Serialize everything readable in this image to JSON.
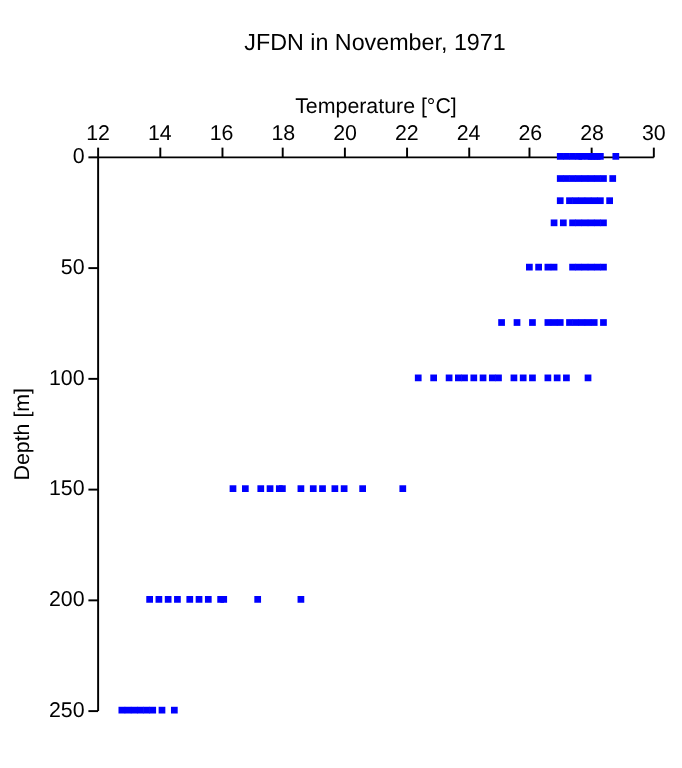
{
  "chart_data": {
    "type": "scatter",
    "title": "JFDN in November, 1971",
    "xlabel": "Temperature [°C]",
    "ylabel": "Depth [m]",
    "xlim": [
      12,
      30
    ],
    "xticks": [
      12,
      14,
      16,
      18,
      20,
      22,
      24,
      26,
      28,
      30
    ],
    "ylim": [
      250,
      0
    ],
    "yticks": [
      0,
      50,
      100,
      150,
      200,
      250
    ],
    "grid": false,
    "marker": "square",
    "series": [
      {
        "color": "#0000ff",
        "x": [
          27.0,
          27.2,
          27.4,
          27.6,
          27.7,
          27.9,
          28.0,
          28.1,
          28.2,
          28.3,
          28.8,
          27.0,
          27.2,
          27.4,
          27.6,
          27.8,
          28.0,
          28.2,
          28.4,
          28.7,
          27.0,
          27.3,
          27.5,
          27.7,
          27.9,
          28.1,
          28.3,
          28.6,
          26.8,
          27.1,
          27.4,
          27.6,
          27.8,
          28.0,
          28.2,
          28.4,
          26.0,
          26.3,
          26.6,
          26.8,
          27.4,
          27.6,
          27.8,
          28.0,
          28.2,
          28.4,
          25.1,
          25.6,
          26.1,
          26.6,
          26.8,
          27.0,
          27.3,
          27.5,
          27.7,
          27.9,
          28.1,
          28.4,
          22.4,
          22.9,
          23.4,
          23.7,
          23.9,
          24.2,
          24.5,
          24.8,
          25.0,
          25.5,
          25.8,
          26.1,
          26.6,
          26.9,
          27.2,
          27.9,
          16.4,
          16.8,
          17.3,
          17.6,
          17.9,
          18.0,
          18.6,
          19.0,
          19.3,
          19.7,
          20.0,
          20.6,
          21.9,
          13.7,
          14.0,
          14.3,
          14.6,
          15.0,
          15.3,
          15.6,
          16.0,
          16.1,
          17.2,
          18.6,
          12.8,
          13.0,
          13.2,
          13.4,
          13.6,
          13.8,
          14.1,
          14.5
        ],
        "values": [
          0,
          0,
          0,
          0,
          0,
          0,
          0,
          0,
          0,
          0,
          0,
          10,
          10,
          10,
          10,
          10,
          10,
          10,
          10,
          10,
          20,
          20,
          20,
          20,
          20,
          20,
          20,
          20,
          30,
          30,
          30,
          30,
          30,
          30,
          30,
          30,
          50,
          50,
          50,
          50,
          50,
          50,
          50,
          50,
          50,
          50,
          75,
          75,
          75,
          75,
          75,
          75,
          75,
          75,
          75,
          75,
          75,
          75,
          100,
          100,
          100,
          100,
          100,
          100,
          100,
          100,
          100,
          100,
          100,
          100,
          100,
          100,
          100,
          100,
          150,
          150,
          150,
          150,
          150,
          150,
          150,
          150,
          150,
          150,
          150,
          150,
          150,
          200,
          200,
          200,
          200,
          200,
          200,
          200,
          200,
          200,
          200,
          200,
          250,
          250,
          250,
          250,
          250,
          250,
          250,
          250
        ]
      }
    ]
  }
}
